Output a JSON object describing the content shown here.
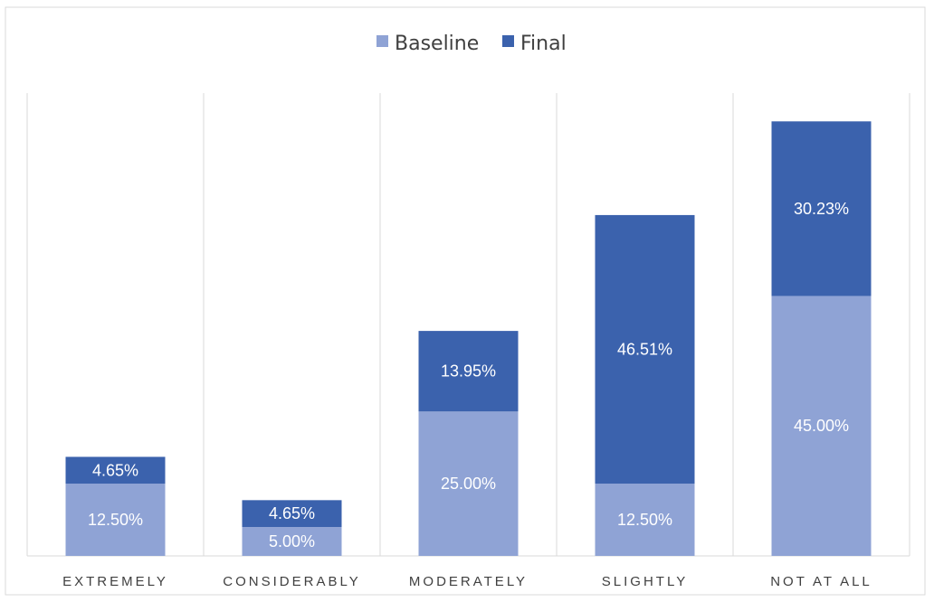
{
  "chart_data": {
    "type": "bar",
    "stacked": true,
    "categories": [
      "EXTREMELY",
      "CONSIDERABLY",
      "MODERATELY",
      "SLIGHTLY",
      "NOT AT ALL"
    ],
    "series": [
      {
        "name": "Baseline",
        "values": [
          12.5,
          5.0,
          25.0,
          12.5,
          45.0
        ],
        "labels": [
          "12.50%",
          "5.00%",
          "25.00%",
          "12.50%",
          "45.00%"
        ],
        "color": "#8FA3D5"
      },
      {
        "name": "Final",
        "values": [
          4.65,
          4.65,
          13.95,
          46.51,
          30.23
        ],
        "labels": [
          "4.65%",
          "4.65%",
          "13.95%",
          "46.51%",
          "30.23%"
        ],
        "color": "#3B62AD"
      }
    ],
    "legend_position": "top-center",
    "grid": "vertical separators between categories",
    "y_axis_visible": false
  }
}
